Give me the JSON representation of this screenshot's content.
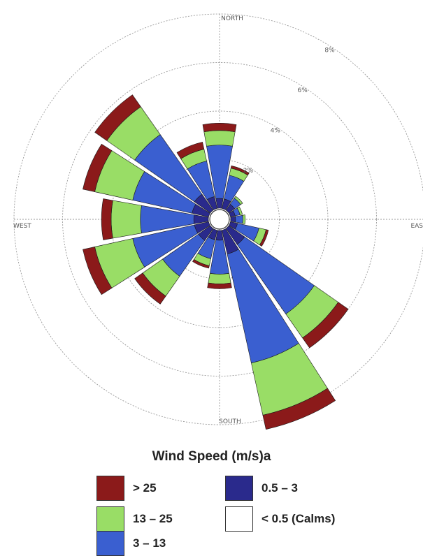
{
  "chart_data": {
    "type": "wind-rose",
    "directions": [
      "N",
      "NNE",
      "NE",
      "ENE",
      "E",
      "ESE",
      "SE",
      "SSE",
      "S",
      "SSW",
      "SW",
      "WSW",
      "W",
      "WNW",
      "NW",
      "NNW"
    ],
    "direction_labels": {
      "north": "NORTH",
      "south": "SOUTH",
      "west": "WEST",
      "east": "EAS"
    },
    "ring_labels": [
      "2%",
      "4%",
      "6%",
      "8%"
    ],
    "rmax_percent": 8,
    "bin_order_from_center": [
      "0.5 - 3",
      "3 - 13",
      "13 - 25",
      "> 25"
    ],
    "frequencies_percent": [
      [
        0.4,
        2.2,
        0.6,
        0.3
      ],
      [
        0.4,
        1.0,
        0.3,
        0.1
      ],
      [
        0.3,
        0.3,
        0.1,
        0.0
      ],
      [
        0.2,
        0.2,
        0.1,
        0.0
      ],
      [
        0.2,
        0.3,
        0.1,
        0.0
      ],
      [
        0.3,
        0.9,
        0.3,
        0.1
      ],
      [
        0.8,
        3.5,
        1.2,
        0.5
      ],
      [
        1.0,
        4.6,
        2.2,
        0.6
      ],
      [
        0.4,
        1.4,
        0.4,
        0.2
      ],
      [
        0.4,
        0.8,
        0.3,
        0.1
      ],
      [
        0.6,
        1.8,
        1.0,
        0.4
      ],
      [
        0.6,
        2.6,
        1.6,
        0.5
      ],
      [
        0.6,
        2.2,
        1.2,
        0.4
      ],
      [
        0.7,
        2.5,
        1.6,
        0.5
      ],
      [
        0.8,
        3.0,
        1.4,
        0.6
      ],
      [
        0.5,
        1.5,
        0.5,
        0.3
      ]
    ],
    "legend": {
      "title": "Wind Speed (m/s)a",
      "items": [
        {
          "label": "> 25",
          "color": "#8b1a1a"
        },
        {
          "label": "0.5 – 3",
          "color": "#2a2a8c"
        },
        {
          "label": "13 – 25",
          "color": "#99dd66"
        },
        {
          "label": "< 0.5 (Calms)",
          "color": "#ffffff"
        },
        {
          "label": "3 – 13",
          "color": "#3a5fd0"
        }
      ]
    },
    "bin_colors": {
      "0.5 - 3": "#2a2a8c",
      "3 - 13": "#3a5fd0",
      "13 - 25": "#99dd66",
      "> 25": "#8b1a1a"
    }
  }
}
